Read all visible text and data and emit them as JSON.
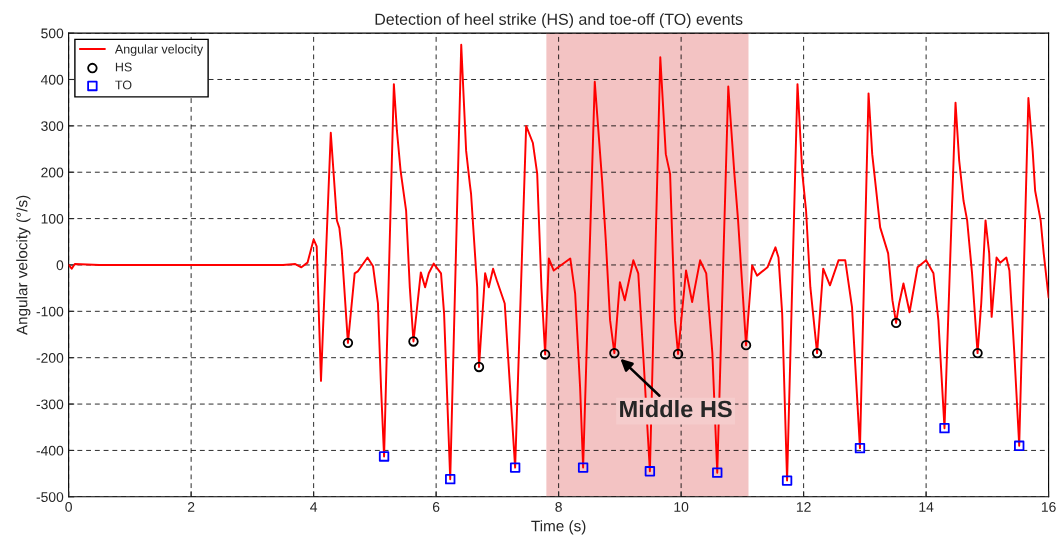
{
  "chart_data": {
    "type": "line",
    "title": "Detection of heel strike (HS) and toe-off (TO) events",
    "xlabel": "Time (s)",
    "ylabel": "Angular velocity (°/s)",
    "xlim": [
      0,
      16
    ],
    "ylim": [
      -500,
      500
    ],
    "xticks": [
      0,
      2,
      4,
      6,
      8,
      10,
      12,
      14,
      16
    ],
    "yticks": [
      -500,
      -400,
      -300,
      -200,
      -100,
      0,
      100,
      200,
      300,
      400,
      500
    ],
    "grid": true,
    "legend": "top left",
    "series": [
      {
        "name": "Angular velocity",
        "color": "#ff0000",
        "marker": "none",
        "line_style": "solid",
        "x": [
          0,
          0.05,
          0.1,
          0.5,
          1,
          2,
          3,
          3.5,
          3.7,
          3.8,
          3.9,
          4.0,
          4.05,
          4.12,
          4.28,
          4.38,
          4.42,
          4.46,
          4.56,
          4.67,
          4.72,
          4.88,
          4.97,
          5.05,
          5.1,
          5.15,
          5.31,
          5.36,
          5.42,
          5.51,
          5.57,
          5.63,
          5.75,
          5.82,
          5.88,
          5.96,
          6.08,
          6.13,
          6.23,
          6.41,
          6.49,
          6.55,
          6.57,
          6.67,
          6.7,
          6.8,
          6.86,
          6.93,
          6.99,
          7.12,
          7.29,
          7.47,
          7.58,
          7.65,
          7.72,
          7.78,
          7.84,
          7.92,
          8.19,
          8.27,
          8.35,
          8.4,
          8.59,
          8.71,
          8.77,
          8.84,
          8.91,
          9.0,
          9.08,
          9.22,
          9.3,
          9.38,
          9.49,
          9.66,
          9.75,
          9.82,
          9.9,
          9.95,
          10.08,
          10.18,
          10.31,
          10.41,
          10.51,
          10.59,
          10.77,
          10.87,
          10.93,
          11.06,
          11.16,
          11.24,
          11.41,
          11.54,
          11.59,
          11.65,
          11.73,
          11.9,
          11.98,
          12.04,
          12.11,
          12.22,
          12.32,
          12.43,
          12.57,
          12.68,
          12.79,
          12.92,
          13.06,
          13.12,
          13.18,
          13.25,
          13.38,
          13.45,
          13.51,
          13.56,
          13.63,
          13.73,
          13.86,
          14.0,
          14.12,
          14.2,
          14.3,
          14.48,
          14.54,
          14.61,
          14.67,
          14.75,
          14.84,
          14.9,
          14.97,
          15.03,
          15.07,
          15.15,
          15.21,
          15.31,
          15.36,
          15.44,
          15.52,
          15.67,
          15.74,
          15.78,
          15.87,
          15.92,
          16.0
        ],
        "values": [
          0,
          -8,
          2,
          0,
          0,
          0,
          0,
          0,
          2,
          -5,
          5,
          55,
          40,
          -250,
          285,
          96,
          80,
          31,
          -168,
          -18,
          -14,
          16,
          -3,
          -83,
          -263,
          -413,
          390,
          289,
          203,
          117,
          -48,
          -165,
          -16,
          -48,
          -18,
          3,
          -18,
          -105,
          -462,
          475,
          246,
          175,
          154,
          -48,
          -220,
          -18,
          -48,
          -8,
          -33,
          -83,
          -437,
          300,
          263,
          197,
          -50,
          -193,
          14,
          -12,
          14,
          -62,
          -262,
          -437,
          395,
          182,
          53,
          -119,
          -190,
          -37,
          -76,
          10,
          -18,
          -190,
          -445,
          448,
          239,
          196,
          -119,
          -192,
          -12,
          -80,
          10,
          -18,
          -190,
          -448,
          385,
          196,
          96,
          -173,
          -1,
          -23,
          -5,
          38,
          16,
          -105,
          -465,
          390,
          196,
          117,
          -48,
          -190,
          -8,
          -44,
          10,
          10,
          -91,
          -395,
          370,
          239,
          167,
          81,
          25,
          -76,
          -125,
          -83,
          -40,
          -102,
          -5,
          10,
          -18,
          -119,
          -352,
          350,
          225,
          139,
          96,
          -18,
          -190,
          -83,
          96,
          25,
          -112,
          16,
          5,
          16,
          -12,
          -190,
          -390,
          360,
          246,
          160,
          96,
          25,
          -70
        ]
      },
      {
        "name": "HS",
        "type": "scatter",
        "color": "#000000",
        "marker": "circle",
        "x": [
          4.56,
          5.63,
          6.7,
          7.78,
          8.91,
          9.95,
          11.06,
          12.22,
          13.51,
          14.84
        ],
        "values": [
          -168,
          -165,
          -220,
          -193,
          -190,
          -192,
          -173,
          -190,
          -125,
          -190
        ]
      },
      {
        "name": "TO",
        "type": "scatter",
        "color": "#0000ff",
        "marker": "square",
        "x": [
          5.15,
          6.23,
          7.29,
          8.4,
          9.49,
          10.59,
          11.73,
          12.92,
          14.3,
          15.52
        ],
        "values": [
          -413,
          -462,
          -437,
          -437,
          -445,
          -448,
          -465,
          -395,
          -352,
          -390
        ]
      }
    ],
    "bands": [
      {
        "axis": "x",
        "from": 7.8,
        "to": 11.1,
        "color": "#f0b4b4"
      }
    ],
    "annotations": [
      {
        "text": "Middle HS",
        "x": 8.91,
        "y": -190
      }
    ]
  }
}
